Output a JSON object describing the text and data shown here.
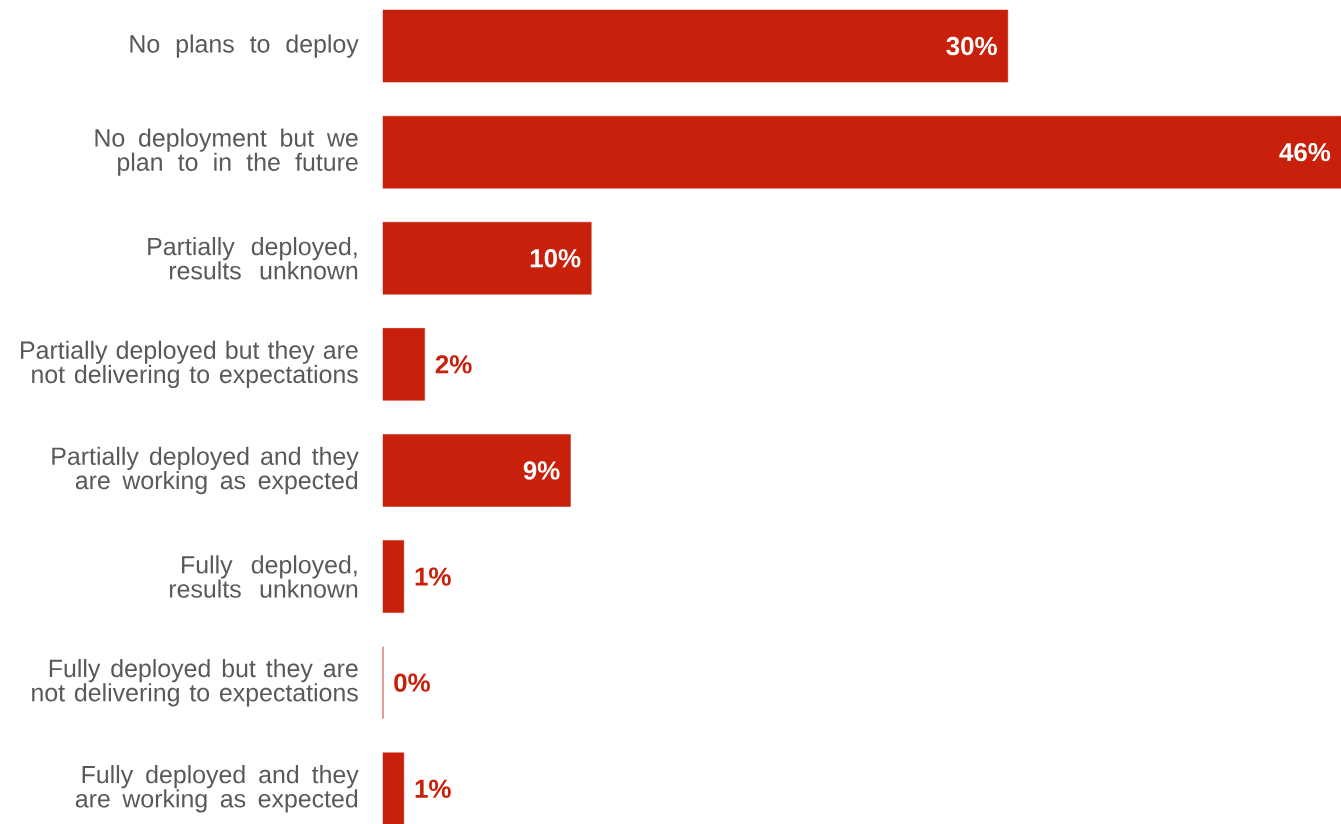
{
  "chart_data": {
    "type": "bar",
    "orientation": "horizontal",
    "color": "#c8200a",
    "categories": [
      "No plans to deploy",
      "No deployment but we plan to in the future",
      "Partially deployed, results unknown",
      "Partially deployed but they are not delivering to expectations",
      "Partially deployed and they are working as expected",
      "Fully deployed, results unknown",
      "Fully deployed but they are not delivering to expectations",
      "Fully deployed and they are working as expected"
    ],
    "values": [
      30,
      46,
      10,
      2,
      9,
      1,
      0,
      1
    ],
    "value_labels": [
      "30%",
      "46%",
      "10%",
      "2%",
      "9%",
      "1%",
      "0%",
      "1%"
    ]
  }
}
